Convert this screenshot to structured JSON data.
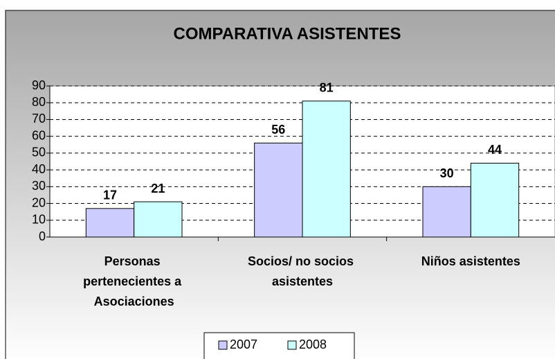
{
  "chart_data": {
    "type": "bar",
    "title": "COMPARATIVA ASISTENTES",
    "categories": [
      "Personas pertenecientes a Asociaciones",
      "Socios/ no socios asistentes",
      "Niños asistentes"
    ],
    "series": [
      {
        "name": "2007",
        "color": "#ccccff",
        "values": [
          17,
          56,
          30
        ]
      },
      {
        "name": "2008",
        "color": "#ccffff",
        "values": [
          21,
          81,
          44
        ]
      }
    ],
    "ylim": [
      0,
      90
    ],
    "yticks": [
      0,
      10,
      20,
      30,
      40,
      50,
      60,
      70,
      80,
      90
    ],
    "grid": true,
    "legend": "bottom"
  }
}
